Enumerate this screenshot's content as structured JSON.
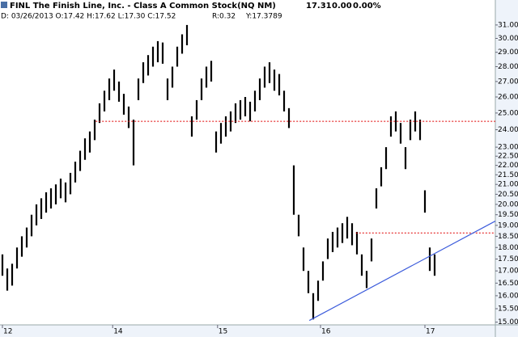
{
  "header": {
    "title": "FINL The Finish Line, Inc. - Class A Common Stock(NQ NM)",
    "last": "17.31",
    "change": "0.00",
    "change_pct": "0.00%",
    "bar_info": "D: 03/26/2013 O:17.42 H:17.62 L:17.30 C:17.52",
    "range": "R:0.32",
    "y_value": "Y:17.3789"
  },
  "chart_data": {
    "type": "ohlc",
    "color": "#000000",
    "log_scale": true,
    "xlim": [
      0,
      102
    ],
    "ylim": [
      14.9,
      31.8
    ],
    "xticks": [
      {
        "value": 0.5,
        "label": "12"
      },
      {
        "value": 23.2,
        "label": "14"
      },
      {
        "value": 44.8,
        "label": "15"
      },
      {
        "value": 66.0,
        "label": "16"
      },
      {
        "value": 87.5,
        "label": "17"
      }
    ],
    "yticks": [
      {
        "value": 15,
        "label": "15.00"
      },
      {
        "value": 15.5,
        "label": "15.50"
      },
      {
        "value": 16,
        "label": "16.00"
      },
      {
        "value": 16.5,
        "label": "16.50"
      },
      {
        "value": 17,
        "label": "17.00"
      },
      {
        "value": 17.5,
        "label": "17.50"
      },
      {
        "value": 18,
        "label": "18.00"
      },
      {
        "value": 18.5,
        "label": "18.50"
      },
      {
        "value": 19,
        "label": "19.00"
      },
      {
        "value": 19.5,
        "label": "19.50"
      },
      {
        "value": 20,
        "label": "20.00"
      },
      {
        "value": 20.5,
        "label": "20.50"
      },
      {
        "value": 21,
        "label": "21.00"
      },
      {
        "value": 21.5,
        "label": "21.50"
      },
      {
        "value": 22,
        "label": "22.00"
      },
      {
        "value": 22.5,
        "label": "22.50"
      },
      {
        "value": 23,
        "label": "23.00"
      },
      {
        "value": 24,
        "label": "24.00"
      },
      {
        "value": 25,
        "label": "25.00"
      },
      {
        "value": 26,
        "label": "26.00"
      },
      {
        "value": 27,
        "label": "27.00"
      },
      {
        "value": 28,
        "label": "28.00"
      },
      {
        "value": 29,
        "label": "29.00"
      },
      {
        "value": 30,
        "label": "30.00"
      },
      {
        "value": 31,
        "label": "31.00"
      }
    ],
    "high": [
      17.7,
      17.1,
      17.3,
      18.0,
      18.5,
      18.9,
      19.5,
      20.0,
      20.3,
      20.6,
      20.8,
      21.0,
      21.3,
      21.1,
      21.6,
      22.2,
      22.8,
      23.5,
      23.9,
      24.6,
      25.6,
      26.4,
      27.2,
      27.8,
      27.0,
      26.2,
      25.4,
      24.6,
      27.2,
      28.3,
      28.8,
      29.4,
      29.8,
      29.7,
      27.2,
      28.0,
      29.4,
      30.3,
      31.0,
      24.8,
      25.8,
      27.2,
      28.0,
      28.4,
      23.9,
      24.4,
      24.8,
      25.1,
      25.6,
      25.8,
      26.0,
      25.7,
      26.4,
      27.2,
      28.0,
      28.3,
      27.8,
      27.5,
      26.4,
      25.3,
      22.0,
      19.5,
      18.0,
      17.0,
      16.1,
      16.6,
      17.4,
      18.4,
      18.7,
      18.9,
      19.1,
      19.4,
      19.1,
      18.7,
      17.7,
      17.0,
      18.4,
      20.8,
      21.9,
      23.0,
      24.8,
      25.1,
      24.4,
      23.0,
      24.6,
      25.1,
      24.6,
      20.7,
      18.0,
      17.7
    ],
    "low": [
      16.8,
      16.2,
      16.4,
      17.1,
      17.6,
      18.0,
      18.5,
      19.0,
      19.3,
      19.6,
      19.8,
      20.0,
      20.3,
      20.1,
      20.5,
      21.1,
      21.7,
      22.3,
      22.7,
      23.4,
      24.4,
      25.1,
      25.8,
      26.4,
      25.7,
      24.9,
      24.1,
      22.0,
      25.8,
      26.9,
      27.4,
      28.0,
      28.3,
      28.2,
      25.8,
      26.6,
      28.0,
      28.9,
      29.5,
      23.6,
      24.6,
      25.8,
      26.6,
      27.0,
      22.7,
      23.2,
      23.6,
      23.9,
      24.4,
      24.6,
      24.8,
      24.5,
      25.1,
      25.8,
      26.6,
      26.9,
      26.4,
      26.1,
      25.1,
      24.1,
      19.5,
      18.5,
      17.0,
      16.1,
      15.1,
      15.8,
      16.6,
      17.5,
      17.8,
      18.0,
      18.2,
      18.4,
      18.1,
      17.7,
      16.8,
      16.3,
      17.4,
      19.8,
      20.9,
      21.8,
      23.6,
      23.9,
      23.2,
      21.8,
      23.4,
      23.9,
      23.4,
      19.6,
      17.0,
      16.8
    ],
    "hlines": [
      {
        "value": 24.5,
        "from": 19.7,
        "color": "#e00000"
      },
      {
        "value": 18.65,
        "from": 73.3,
        "color": "#e00000"
      }
    ],
    "trendline": {
      "x": [
        63.7,
        102
      ],
      "y": [
        15.06,
        19.2
      ],
      "color": "#3b5bdb"
    }
  }
}
